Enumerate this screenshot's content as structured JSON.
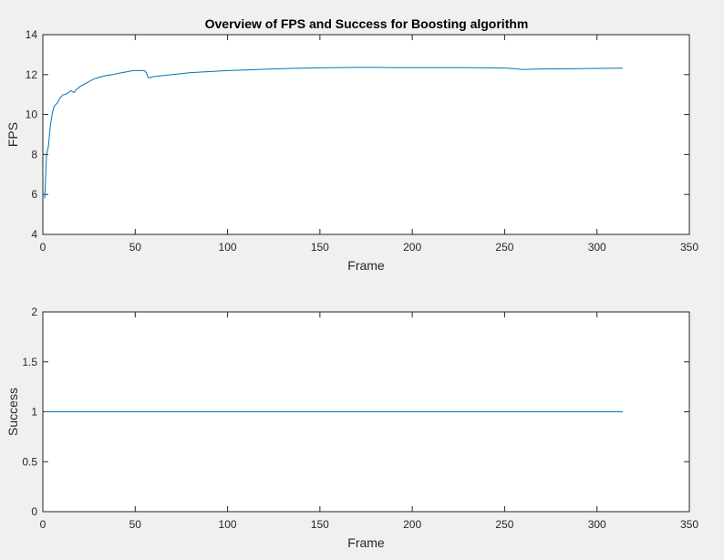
{
  "chart_data": [
    {
      "type": "line",
      "title": "Overview of FPS and Success for Boosting algorithm",
      "xlabel": "Frame",
      "ylabel": "FPS",
      "xlim": [
        0,
        350
      ],
      "ylim": [
        4,
        14
      ],
      "xticks": [
        "0",
        "50",
        "100",
        "150",
        "200",
        "250",
        "300",
        "350"
      ],
      "yticks": [
        "4",
        "6",
        "8",
        "10",
        "12",
        "14"
      ],
      "grid": false,
      "color": "#0072bd",
      "series": [
        {
          "x": [
            1,
            2,
            3,
            4,
            5,
            6,
            7,
            8,
            9,
            10,
            11,
            12,
            13,
            14,
            15,
            16,
            17,
            18,
            19,
            20,
            22,
            24,
            26,
            28,
            30,
            32,
            34,
            36,
            38,
            40,
            43,
            46,
            49,
            52,
            55,
            56,
            57,
            58,
            60,
            65,
            70,
            75,
            80,
            90,
            100,
            110,
            120,
            130,
            140,
            150,
            160,
            170,
            180,
            190,
            200,
            210,
            220,
            230,
            240,
            250,
            255,
            258,
            260,
            262,
            265,
            270,
            280,
            290,
            300,
            314
          ],
          "y": [
            5.8,
            8.0,
            8.4,
            9.4,
            10.0,
            10.4,
            10.5,
            10.6,
            10.8,
            10.9,
            11.0,
            11.0,
            11.05,
            11.1,
            11.2,
            11.15,
            11.1,
            11.25,
            11.3,
            11.4,
            11.5,
            11.6,
            11.7,
            11.8,
            11.85,
            11.9,
            11.95,
            11.98,
            12.0,
            12.05,
            12.1,
            12.15,
            12.2,
            12.2,
            12.2,
            12.1,
            11.85,
            11.85,
            11.9,
            11.95,
            12.0,
            12.05,
            12.1,
            12.15,
            12.2,
            12.23,
            12.27,
            12.3,
            12.32,
            12.34,
            12.35,
            12.36,
            12.36,
            12.35,
            12.35,
            12.35,
            12.35,
            12.35,
            12.34,
            12.33,
            12.3,
            12.27,
            12.26,
            12.26,
            12.27,
            12.28,
            12.29,
            12.3,
            12.31,
            12.32
          ]
        }
      ]
    },
    {
      "type": "line",
      "title": "",
      "xlabel": "Frame",
      "ylabel": "Success",
      "xlim": [
        0,
        350
      ],
      "ylim": [
        0,
        2
      ],
      "xticks": [
        "0",
        "50",
        "100",
        "150",
        "200",
        "250",
        "300",
        "350"
      ],
      "yticks": [
        "0",
        "0.5",
        "1",
        "1.5",
        "2"
      ],
      "grid": false,
      "color": "#0072bd",
      "series": [
        {
          "x": [
            1,
            314
          ],
          "y": [
            1,
            1
          ]
        }
      ]
    }
  ]
}
